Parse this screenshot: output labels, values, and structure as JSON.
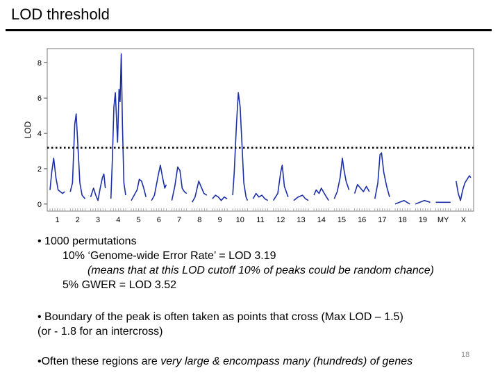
{
  "slide": {
    "title": "LOD threshold",
    "number": "18"
  },
  "bullets": {
    "perm": "• 1000 permutations",
    "gwer10": "10% ‘Genome-wide Error Rate’ = LOD 3.19",
    "means": "(means that at this LOD cutoff 10% of peaks could be random chance)",
    "gwer5": "5% GWER = LOD 3.52",
    "boundary1": "• Boundary of the peak is often taken as points that cross (Max LOD – 1.5)",
    "boundary2": "(or - 1.8 for an intercross)",
    "often_prefix": "•Often these regions are ",
    "often_italic": "very large & encompass many (hundreds) of genes"
  },
  "chart_data": {
    "type": "line",
    "ylabel": "LOD",
    "ylim": [
      -0.4,
      8.8
    ],
    "yticks": [
      0,
      2,
      4,
      6,
      8
    ],
    "threshold": 3.19,
    "chromosomes": [
      "1",
      "2",
      "3",
      "4",
      "5",
      "6",
      "7",
      "8",
      "9",
      "10",
      "11",
      "12",
      "13",
      "14",
      "15",
      "16",
      "17",
      "18",
      "19",
      "MY",
      "X"
    ],
    "series": [
      {
        "chr": "1",
        "points": [
          [
            0,
            0.8
          ],
          [
            0.12,
            1.8
          ],
          [
            0.25,
            2.6
          ],
          [
            0.4,
            1.5
          ],
          [
            0.55,
            0.8
          ],
          [
            0.7,
            0.7
          ],
          [
            0.85,
            0.6
          ],
          [
            1,
            0.7
          ]
        ]
      },
      {
        "chr": "2",
        "points": [
          [
            0,
            0.7
          ],
          [
            0.15,
            1.2
          ],
          [
            0.3,
            4.5
          ],
          [
            0.4,
            5.1
          ],
          [
            0.5,
            3.5
          ],
          [
            0.65,
            1.2
          ],
          [
            0.8,
            0.5
          ],
          [
            1,
            0.3
          ]
        ]
      },
      {
        "chr": "3",
        "points": [
          [
            0,
            0.4
          ],
          [
            0.2,
            0.9
          ],
          [
            0.35,
            0.5
          ],
          [
            0.5,
            0.2
          ],
          [
            0.65,
            0.9
          ],
          [
            0.8,
            1.5
          ],
          [
            0.9,
            1.7
          ],
          [
            1,
            0.9
          ]
        ]
      },
      {
        "chr": "4",
        "points": [
          [
            0,
            0.3
          ],
          [
            0.1,
            2.5
          ],
          [
            0.2,
            5.5
          ],
          [
            0.3,
            6.3
          ],
          [
            0.45,
            3.5
          ],
          [
            0.55,
            6.5
          ],
          [
            0.62,
            5.8
          ],
          [
            0.7,
            8.5
          ],
          [
            0.78,
            4.5
          ],
          [
            0.88,
            1.2
          ],
          [
            1,
            0.5
          ]
        ]
      },
      {
        "chr": "5",
        "points": [
          [
            0,
            0.2
          ],
          [
            0.2,
            0.5
          ],
          [
            0.4,
            0.8
          ],
          [
            0.55,
            1.4
          ],
          [
            0.7,
            1.3
          ],
          [
            0.85,
            0.9
          ],
          [
            1,
            0.4
          ]
        ]
      },
      {
        "chr": "6",
        "points": [
          [
            0,
            0.2
          ],
          [
            0.2,
            0.5
          ],
          [
            0.45,
            1.6
          ],
          [
            0.6,
            2.2
          ],
          [
            0.75,
            1.5
          ],
          [
            0.9,
            0.9
          ],
          [
            1,
            1.1
          ]
        ]
      },
      {
        "chr": "7",
        "points": [
          [
            0,
            0.2
          ],
          [
            0.2,
            1.0
          ],
          [
            0.4,
            2.1
          ],
          [
            0.55,
            1.9
          ],
          [
            0.7,
            0.9
          ],
          [
            0.85,
            0.7
          ],
          [
            1,
            0.6
          ]
        ]
      },
      {
        "chr": "8",
        "points": [
          [
            0,
            0.1
          ],
          [
            0.2,
            0.4
          ],
          [
            0.45,
            1.3
          ],
          [
            0.6,
            1.0
          ],
          [
            0.8,
            0.6
          ],
          [
            1,
            0.5
          ]
        ]
      },
      {
        "chr": "9",
        "points": [
          [
            0,
            0.3
          ],
          [
            0.2,
            0.5
          ],
          [
            0.4,
            0.4
          ],
          [
            0.6,
            0.2
          ],
          [
            0.8,
            0.4
          ],
          [
            1,
            0.3
          ]
        ]
      },
      {
        "chr": "10",
        "points": [
          [
            0,
            0.5
          ],
          [
            0.1,
            1.8
          ],
          [
            0.25,
            4.5
          ],
          [
            0.38,
            6.3
          ],
          [
            0.5,
            5.5
          ],
          [
            0.62,
            3.5
          ],
          [
            0.75,
            1.2
          ],
          [
            0.9,
            0.4
          ],
          [
            1,
            0.2
          ]
        ]
      },
      {
        "chr": "11",
        "points": [
          [
            0,
            0.3
          ],
          [
            0.2,
            0.6
          ],
          [
            0.4,
            0.4
          ],
          [
            0.6,
            0.5
          ],
          [
            0.8,
            0.3
          ],
          [
            1,
            0.2
          ]
        ]
      },
      {
        "chr": "12",
        "points": [
          [
            0,
            0.2
          ],
          [
            0.3,
            0.6
          ],
          [
            0.5,
            1.8
          ],
          [
            0.6,
            2.2
          ],
          [
            0.75,
            1.0
          ],
          [
            1,
            0.4
          ]
        ]
      },
      {
        "chr": "13",
        "points": [
          [
            0,
            0.2
          ],
          [
            0.3,
            0.4
          ],
          [
            0.6,
            0.5
          ],
          [
            0.8,
            0.3
          ],
          [
            1,
            0.2
          ]
        ]
      },
      {
        "chr": "14",
        "points": [
          [
            0,
            0.5
          ],
          [
            0.15,
            0.8
          ],
          [
            0.35,
            0.6
          ],
          [
            0.5,
            0.9
          ],
          [
            0.7,
            0.6
          ],
          [
            0.85,
            0.4
          ],
          [
            1,
            0.2
          ]
        ]
      },
      {
        "chr": "15",
        "points": [
          [
            0,
            0.3
          ],
          [
            0.2,
            0.7
          ],
          [
            0.4,
            1.5
          ],
          [
            0.55,
            2.6
          ],
          [
            0.65,
            2.0
          ],
          [
            0.8,
            1.3
          ],
          [
            1,
            0.8
          ]
        ]
      },
      {
        "chr": "16",
        "points": [
          [
            0,
            0.6
          ],
          [
            0.2,
            1.1
          ],
          [
            0.4,
            0.9
          ],
          [
            0.6,
            0.7
          ],
          [
            0.8,
            1.0
          ],
          [
            1,
            0.7
          ]
        ]
      },
      {
        "chr": "17",
        "points": [
          [
            0,
            0.3
          ],
          [
            0.2,
            1.2
          ],
          [
            0.35,
            2.8
          ],
          [
            0.45,
            2.9
          ],
          [
            0.6,
            1.8
          ],
          [
            0.8,
            1.0
          ],
          [
            1,
            0.4
          ]
        ]
      },
      {
        "chr": "18",
        "points": [
          [
            0,
            0.0
          ],
          [
            0.3,
            0.1
          ],
          [
            0.6,
            0.2
          ],
          [
            0.8,
            0.1
          ],
          [
            1,
            0.0
          ]
        ]
      },
      {
        "chr": "19",
        "points": [
          [
            0,
            0.0
          ],
          [
            0.3,
            0.1
          ],
          [
            0.6,
            0.2
          ],
          [
            1,
            0.1
          ]
        ]
      },
      {
        "chr": "MY",
        "points": [
          [
            0,
            0.1
          ],
          [
            0.5,
            0.1
          ],
          [
            1,
            0.1
          ]
        ]
      },
      {
        "chr": "X",
        "points": [
          [
            0,
            1.3
          ],
          [
            0.15,
            0.6
          ],
          [
            0.3,
            0.2
          ],
          [
            0.45,
            0.8
          ],
          [
            0.6,
            1.2
          ],
          [
            0.75,
            1.4
          ],
          [
            0.9,
            1.6
          ],
          [
            1,
            1.5
          ]
        ]
      }
    ]
  }
}
